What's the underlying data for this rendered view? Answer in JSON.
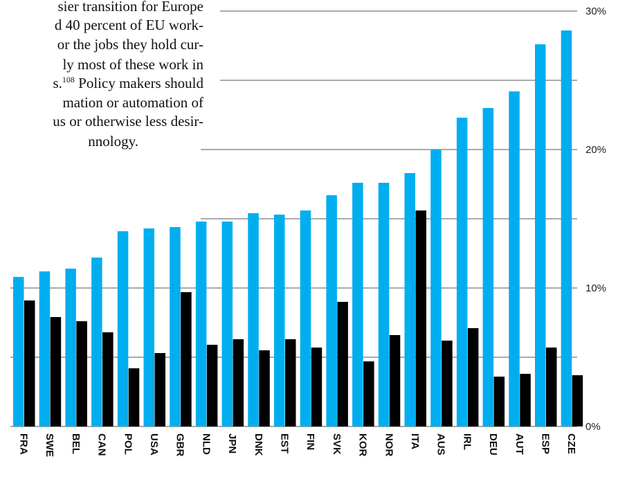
{
  "text_block": {
    "lines": [
      {
        "text": "sier transition for Europe"
      },
      {
        "text": "d 40 percent of EU work-"
      },
      {
        "text": "or the jobs they hold cur-"
      },
      {
        "text": "ly most of these work in"
      },
      {
        "text": "s.",
        "sup": "108",
        "after": " Policy makers should"
      },
      {
        "text": "mation or automation of"
      },
      {
        "text": "us or otherwise less desir-"
      },
      {
        "text": "nnology."
      }
    ]
  },
  "colors": {
    "series_1": "#00aeef",
    "series_2": "#000000",
    "grid": "#555555"
  },
  "chart_data": {
    "type": "bar",
    "categories": [
      "FRA",
      "SWE",
      "BEL",
      "CAN",
      "POL",
      "USA",
      "GBR",
      "NLD",
      "JPN",
      "DNK",
      "EST",
      "FIN",
      "SVK",
      "KOR",
      "NOR",
      "ITA",
      "AUS",
      "IRL",
      "DEU",
      "AUT",
      "ESP",
      "CZE"
    ],
    "series": [
      {
        "values": [
          10.8,
          11.2,
          11.4,
          12.2,
          14.1,
          14.3,
          14.4,
          14.8,
          14.8,
          15.4,
          15.3,
          15.6,
          16.7,
          17.6,
          17.6,
          18.3,
          20.0,
          22.3,
          23.0,
          24.2,
          27.6,
          28.6
        ]
      },
      {
        "values": [
          9.1,
          7.9,
          7.6,
          6.8,
          4.2,
          5.3,
          9.7,
          5.9,
          6.3,
          5.5,
          6.3,
          5.7,
          9.0,
          4.7,
          6.6,
          15.6,
          6.2,
          7.1,
          3.6,
          3.8,
          5.7,
          3.7
        ]
      }
    ],
    "ylim": [
      0,
      30
    ],
    "yticks": [
      0,
      10,
      20,
      30
    ],
    "ytick_labels": [
      "0%",
      "10%",
      "20%",
      "30%"
    ],
    "gridlines": [
      0,
      5,
      10,
      15,
      20,
      25,
      30
    ],
    "grid": true,
    "xlabel": "",
    "ylabel": ""
  }
}
